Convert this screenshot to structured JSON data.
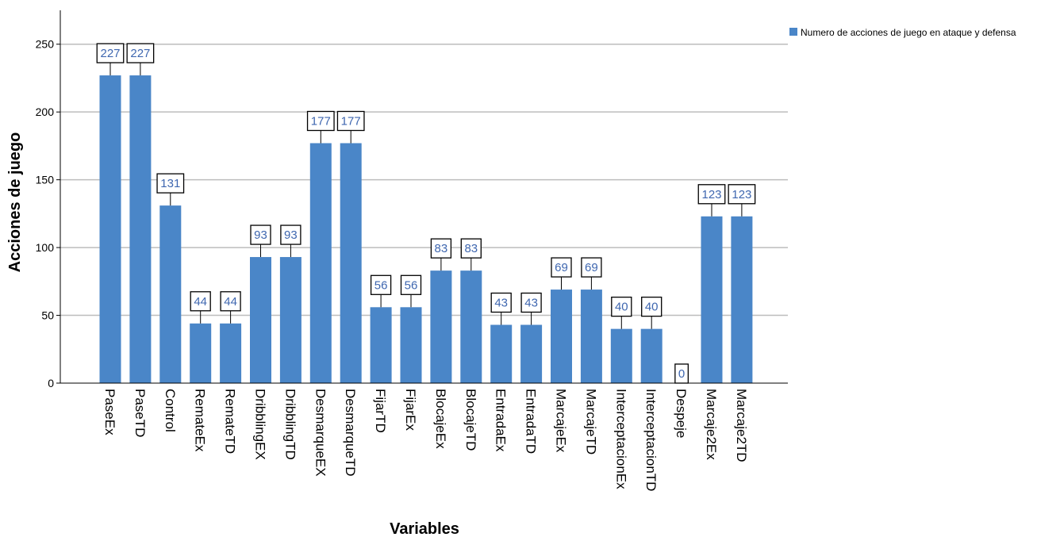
{
  "chart_data": {
    "type": "bar",
    "title": "",
    "xlabel": "Variables",
    "ylabel": "Acciones de juego",
    "ylim": [
      0,
      275
    ],
    "yticks": [
      0,
      50,
      100,
      150,
      200,
      250
    ],
    "grid": true,
    "legend_position": "top-right",
    "categories": [
      "PaseEx",
      "PaseTD",
      "Control",
      "RemateEx",
      "RemateTD",
      "DribblingEX",
      "DribblingTD",
      "DesmarqueEX",
      "DesmarqueTD",
      "FijarTD",
      "FijarEx",
      "BlocajeEx",
      "BlocajeTD",
      "EntradaEx",
      "EntradaTD",
      "MarcajeEx",
      "MarcajeTD",
      "InterceptacionEx",
      "InterceptacionTD",
      "Despeje",
      "Marcaje2Ex",
      "Marcaje2TD"
    ],
    "series": [
      {
        "name": "Numero de acciones de juego en ataque y defensa",
        "color": "#4a86c8",
        "values": [
          227,
          227,
          131,
          44,
          44,
          93,
          93,
          177,
          177,
          56,
          56,
          83,
          83,
          43,
          43,
          69,
          69,
          40,
          40,
          0,
          123,
          123
        ]
      }
    ]
  }
}
